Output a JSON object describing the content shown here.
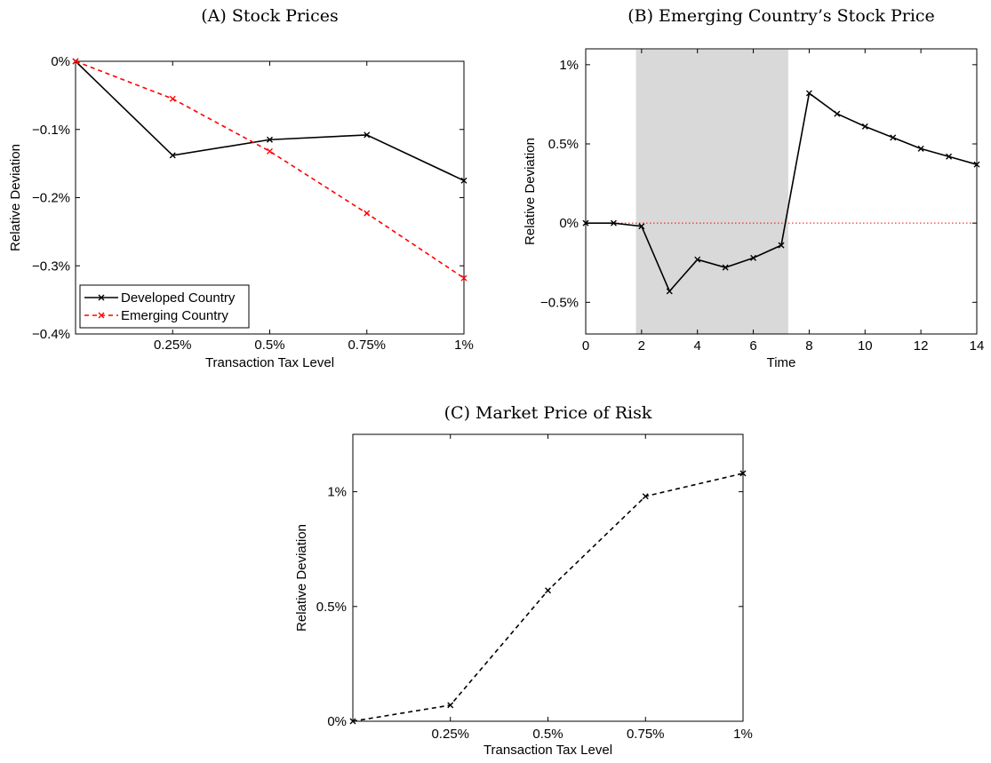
{
  "chart_data": [
    {
      "type": "line",
      "title": "(A) Stock Prices",
      "xlabel": "Transaction Tax Level",
      "ylabel": "Relative Deviation",
      "x": [
        0,
        0.25,
        0.5,
        0.75,
        1.0
      ],
      "xlim": [
        0,
        1.0
      ],
      "ylim": [
        -0.4,
        0.0
      ],
      "x_ticks": [
        0.25,
        0.5,
        0.75,
        1.0
      ],
      "x_tick_labels": [
        "0.25%",
        "0.5%",
        "0.75%",
        "1%"
      ],
      "y_ticks": [
        0.0,
        -0.1,
        -0.2,
        -0.3,
        -0.4
      ],
      "y_tick_labels": [
        "0%",
        "−0.1%",
        "−0.2%",
        "−0.3%",
        "−0.4%"
      ],
      "legend_position": "bottom-left",
      "grid": false,
      "series": [
        {
          "name": "Developed Country",
          "values": [
            0.0,
            -0.138,
            -0.115,
            -0.108,
            -0.175
          ],
          "color": "#000000",
          "dash": "solid",
          "marker": "x"
        },
        {
          "name": "Emerging Country",
          "values": [
            0.0,
            -0.055,
            -0.132,
            -0.223,
            -0.318
          ],
          "color": "#ff0000",
          "dash": "dashed",
          "marker": "x"
        }
      ]
    },
    {
      "type": "line",
      "title": "(B) Emerging Country’s Stock Price",
      "xlabel": "Time",
      "ylabel": "Relative Deviation",
      "xlim": [
        0,
        14
      ],
      "ylim": [
        -0.7,
        1.1
      ],
      "x_ticks": [
        0,
        2,
        4,
        6,
        8,
        10,
        12,
        14
      ],
      "x_tick_labels": [
        "0",
        "2",
        "4",
        "6",
        "8",
        "10",
        "12",
        "14"
      ],
      "y_ticks": [
        1.0,
        0.5,
        0.0,
        -0.5
      ],
      "y_tick_labels": [
        "1%",
        "0.5%",
        "0%",
        "−0.5%"
      ],
      "shaded_region": {
        "x_start": 1.8,
        "x_end": 7.25,
        "color": "#d9d9d9"
      },
      "reference_line": {
        "y": 0.0,
        "color": "#ff0000",
        "style": "dotted"
      },
      "grid": false,
      "series": [
        {
          "x": [
            0,
            1,
            2,
            3,
            4,
            5,
            6,
            7,
            8,
            9,
            10,
            11,
            12,
            13,
            14
          ],
          "values": [
            0.0,
            0.0,
            -0.02,
            -0.43,
            -0.23,
            -0.28,
            -0.22,
            -0.14,
            0.82,
            0.69,
            0.61,
            0.54,
            0.47,
            0.42,
            0.37
          ],
          "color": "#000000",
          "dash": "solid",
          "marker": "x"
        }
      ]
    },
    {
      "type": "line",
      "title": "(C) Market Price of Risk",
      "xlabel": "Transaction Tax Level",
      "ylabel": "Relative Deviation",
      "x": [
        0,
        0.25,
        0.5,
        0.75,
        1.0
      ],
      "xlim": [
        0,
        1.0
      ],
      "ylim": [
        0.0,
        1.25
      ],
      "x_ticks": [
        0.25,
        0.5,
        0.75,
        1.0
      ],
      "x_tick_labels": [
        "0.25%",
        "0.5%",
        "0.75%",
        "1%"
      ],
      "y_ticks": [
        0.0,
        0.5,
        1.0
      ],
      "y_tick_labels": [
        "0%",
        "0.5%",
        "1%"
      ],
      "grid": false,
      "series": [
        {
          "values": [
            0.0,
            0.07,
            0.57,
            0.98,
            1.08
          ],
          "color": "#000000",
          "dash": "dashed",
          "marker": "x"
        }
      ]
    }
  ]
}
